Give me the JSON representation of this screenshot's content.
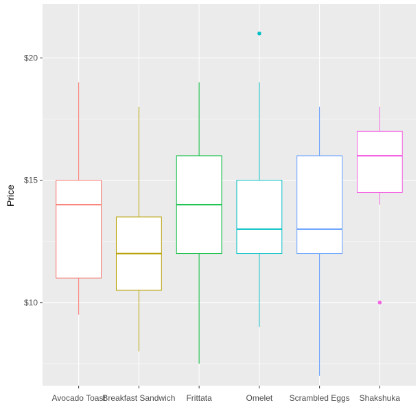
{
  "chart_data": {
    "type": "boxplot",
    "title": "",
    "xlabel": "",
    "ylabel": "Price",
    "ylim": [
      6.6,
      22.2
    ],
    "y_ticks": [
      {
        "value": 10,
        "label": "$10"
      },
      {
        "value": 15,
        "label": "$15"
      },
      {
        "value": 20,
        "label": "$20"
      }
    ],
    "grid": true,
    "legend": "none",
    "categories": [
      "Avocado Toast",
      "Breakfast Sandwich",
      "Frittata",
      "Omelet",
      "Scrambled Eggs",
      "Shakshuka"
    ],
    "series": [
      {
        "category": "Avocado Toast",
        "color": "#F8766D",
        "min": 9.5,
        "q1": 11,
        "median": 14,
        "q3": 15,
        "max": 19,
        "outliers": []
      },
      {
        "category": "Breakfast Sandwich",
        "color": "#B79F00",
        "min": 8,
        "q1": 10.5,
        "median": 12,
        "q3": 13.5,
        "max": 18,
        "outliers": []
      },
      {
        "category": "Frittata",
        "color": "#00BA38",
        "min": 7.5,
        "q1": 12,
        "median": 14,
        "q3": 16,
        "max": 19,
        "outliers": []
      },
      {
        "category": "Omelet",
        "color": "#00BFC4",
        "min": 9,
        "q1": 12,
        "median": 13,
        "q3": 15,
        "max": 19,
        "outliers": [
          21
        ]
      },
      {
        "category": "Scrambled Eggs",
        "color": "#619CFF",
        "min": 7,
        "q1": 12,
        "median": 13,
        "q3": 16,
        "max": 18,
        "outliers": []
      },
      {
        "category": "Shakshuka",
        "color": "#F564E3",
        "min": 14,
        "q1": 14.5,
        "median": 16,
        "q3": 17,
        "max": 18,
        "outliers": [
          10
        ]
      }
    ],
    "colors": {
      "panel_background": "#EBEBEB",
      "grid_major": "#FFFFFF",
      "box_fill": "#FFFFFF",
      "tick_text": "#4D4D4D"
    }
  }
}
